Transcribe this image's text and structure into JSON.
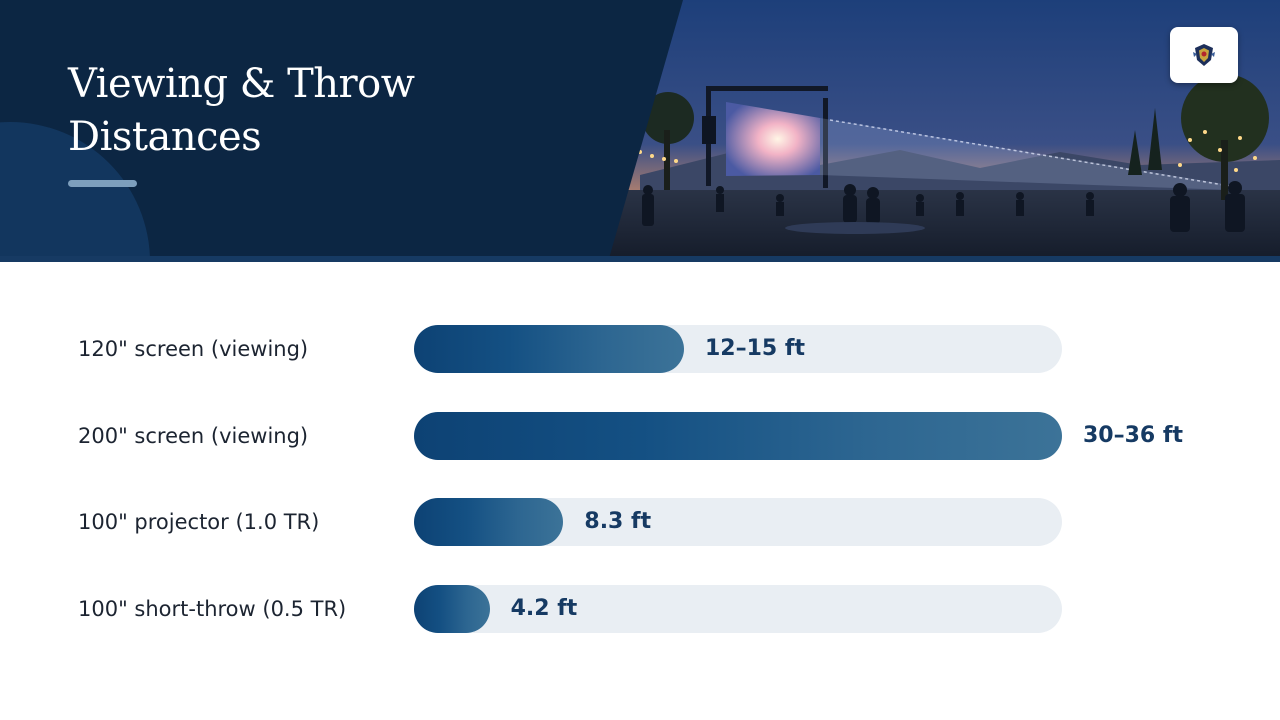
{
  "header": {
    "title_line1": "Viewing & Throw",
    "title_line2": "Distances",
    "image_description_icon": "outdoor-movie-night-scene",
    "logo_icon": "crest-logo-icon"
  },
  "colors": {
    "header_bg": "#0b2340",
    "bar_fill_start": "#0d4274",
    "bar_fill_end": "#3c7398",
    "track": "#e9eef3",
    "value_text": "#163a63",
    "label_text": "#1c2431"
  },
  "chart_data": {
    "type": "bar",
    "orientation": "horizontal",
    "categories": [
      "120\" screen (viewing)",
      "200\" screen (viewing)",
      "100\" projector (1.0 TR)",
      "100\" short-throw (0.5 TR)"
    ],
    "values": [
      15,
      36,
      8.3,
      4.2
    ],
    "value_labels": [
      "12–15 ft",
      "30–36 ft",
      "8.3 ft",
      "4.2 ft"
    ],
    "xlim": [
      0,
      36
    ],
    "grid": false,
    "legend": "none"
  }
}
